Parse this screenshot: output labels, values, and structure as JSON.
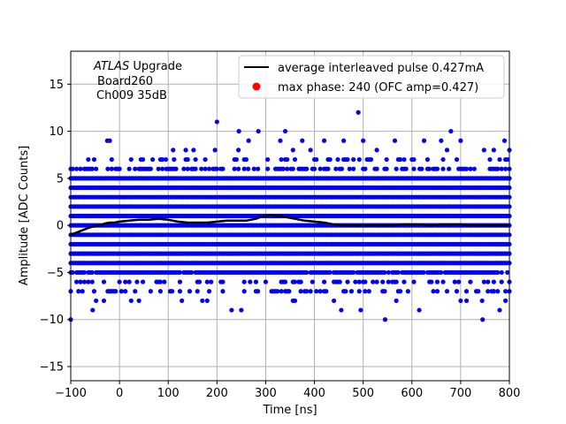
{
  "chart_data": {
    "type": "scatter",
    "title": "",
    "xlabel": "Time [ns]",
    "ylabel": "Amplitude [ADC Counts]",
    "xlim": [
      -100,
      800
    ],
    "ylim": [
      -16.5,
      18.5
    ],
    "xticks": [
      -100,
      0,
      100,
      200,
      300,
      400,
      500,
      600,
      700,
      800
    ],
    "yticks": [
      -15,
      -10,
      -5,
      0,
      5,
      10,
      15
    ],
    "xtick_labels": [
      "−100",
      "0",
      "100",
      "200",
      "300",
      "400",
      "500",
      "600",
      "700",
      "800"
    ],
    "ytick_labels": [
      "−15",
      "−10",
      "−5",
      "0",
      "5",
      "10",
      "15"
    ],
    "grid": true,
    "legend_position": "top-right",
    "annotation": {
      "line1_italic": "ATLAS",
      "line1_rest": " Upgrade",
      "line2": "Board260",
      "line3": "Ch009 35dB"
    },
    "colors": {
      "samples": "#0000ff",
      "average": "#000000",
      "max_phase": "#ff0000",
      "grid": "#b0b0b0"
    },
    "series": [
      {
        "name": "average interleaved pulse 0.427mA",
        "kind": "line",
        "x": [
          -100,
          -90,
          -80,
          -70,
          -60,
          -50,
          -40,
          -30,
          -20,
          -10,
          0,
          20,
          40,
          60,
          80,
          100,
          120,
          140,
          160,
          180,
          200,
          220,
          240,
          260,
          280,
          290,
          300,
          310,
          320,
          330,
          340,
          350,
          360,
          370,
          380,
          400,
          420,
          440,
          460,
          480,
          500,
          520,
          540,
          560,
          580,
          600,
          620,
          640,
          660,
          680,
          700,
          720,
          740,
          760,
          780,
          800
        ],
        "y": [
          -1.0,
          -0.8,
          -0.6,
          -0.4,
          -0.2,
          -0.1,
          0.0,
          0.2,
          0.3,
          0.3,
          0.4,
          0.5,
          0.6,
          0.6,
          0.7,
          0.6,
          0.4,
          0.3,
          0.3,
          0.3,
          0.4,
          0.5,
          0.5,
          0.5,
          0.7,
          0.9,
          1.0,
          1.1,
          1.0,
          1.0,
          0.9,
          0.8,
          0.7,
          0.6,
          0.5,
          0.4,
          0.3,
          0.1,
          0.0,
          0.0,
          0.0,
          0.0,
          0.0,
          0.0,
          0.1,
          0.1,
          0.1,
          0.0,
          0.1,
          0.1,
          0.1,
          0.0,
          0.0,
          0.0,
          0.0,
          0.0
        ]
      },
      {
        "name": "max phase: 240 (OFC amp=0.427)",
        "kind": "marker"
      }
    ],
    "scatter_bands": [
      {
        "y": 8,
        "density": 0.05
      },
      {
        "y": 7,
        "density": 0.2
      },
      {
        "y": 6,
        "density": 0.5
      },
      {
        "y": 5,
        "density": 1.0
      },
      {
        "y": 4,
        "density": 1.0
      },
      {
        "y": 3,
        "density": 1.0
      },
      {
        "y": 2,
        "density": 1.0
      },
      {
        "y": 1,
        "density": 1.0
      },
      {
        "y": 0,
        "density": 1.0
      },
      {
        "y": -1,
        "density": 1.0
      },
      {
        "y": -2,
        "density": 1.0
      },
      {
        "y": -3,
        "density": 1.0
      },
      {
        "y": -4,
        "density": 1.0
      },
      {
        "y": -5,
        "density": 0.9
      },
      {
        "y": -6,
        "density": 0.35
      },
      {
        "y": -7,
        "density": 0.2
      },
      {
        "y": -8,
        "density": 0.05
      }
    ],
    "scatter_outliers": [
      {
        "x": -100,
        "y": -10
      },
      {
        "x": -55,
        "y": -9
      },
      {
        "x": -25,
        "y": 9
      },
      {
        "x": -20,
        "y": 9
      },
      {
        "x": 200,
        "y": 11
      },
      {
        "x": 245,
        "y": 10
      },
      {
        "x": 230,
        "y": -9
      },
      {
        "x": 250,
        "y": -9
      },
      {
        "x": 285,
        "y": 10
      },
      {
        "x": 265,
        "y": 9
      },
      {
        "x": 340,
        "y": 10
      },
      {
        "x": 330,
        "y": 9
      },
      {
        "x": 375,
        "y": 9
      },
      {
        "x": 420,
        "y": 9
      },
      {
        "x": 460,
        "y": 9
      },
      {
        "x": 490,
        "y": 12
      },
      {
        "x": 500,
        "y": 9
      },
      {
        "x": 455,
        "y": -9
      },
      {
        "x": 495,
        "y": -9
      },
      {
        "x": 565,
        "y": 9
      },
      {
        "x": 625,
        "y": 9
      },
      {
        "x": 660,
        "y": 9
      },
      {
        "x": 680,
        "y": 10
      },
      {
        "x": 700,
        "y": 9
      },
      {
        "x": 545,
        "y": -10
      },
      {
        "x": 615,
        "y": -9
      },
      {
        "x": 745,
        "y": -10
      },
      {
        "x": 780,
        "y": -9
      },
      {
        "x": 790,
        "y": 9
      },
      {
        "x": 800,
        "y": 8
      },
      {
        "x": 110,
        "y": 8
      },
      {
        "x": 140,
        "y": 7
      },
      {
        "x": 170,
        "y": -8
      },
      {
        "x": 40,
        "y": -8
      },
      {
        "x": 95,
        "y": 7
      }
    ]
  }
}
